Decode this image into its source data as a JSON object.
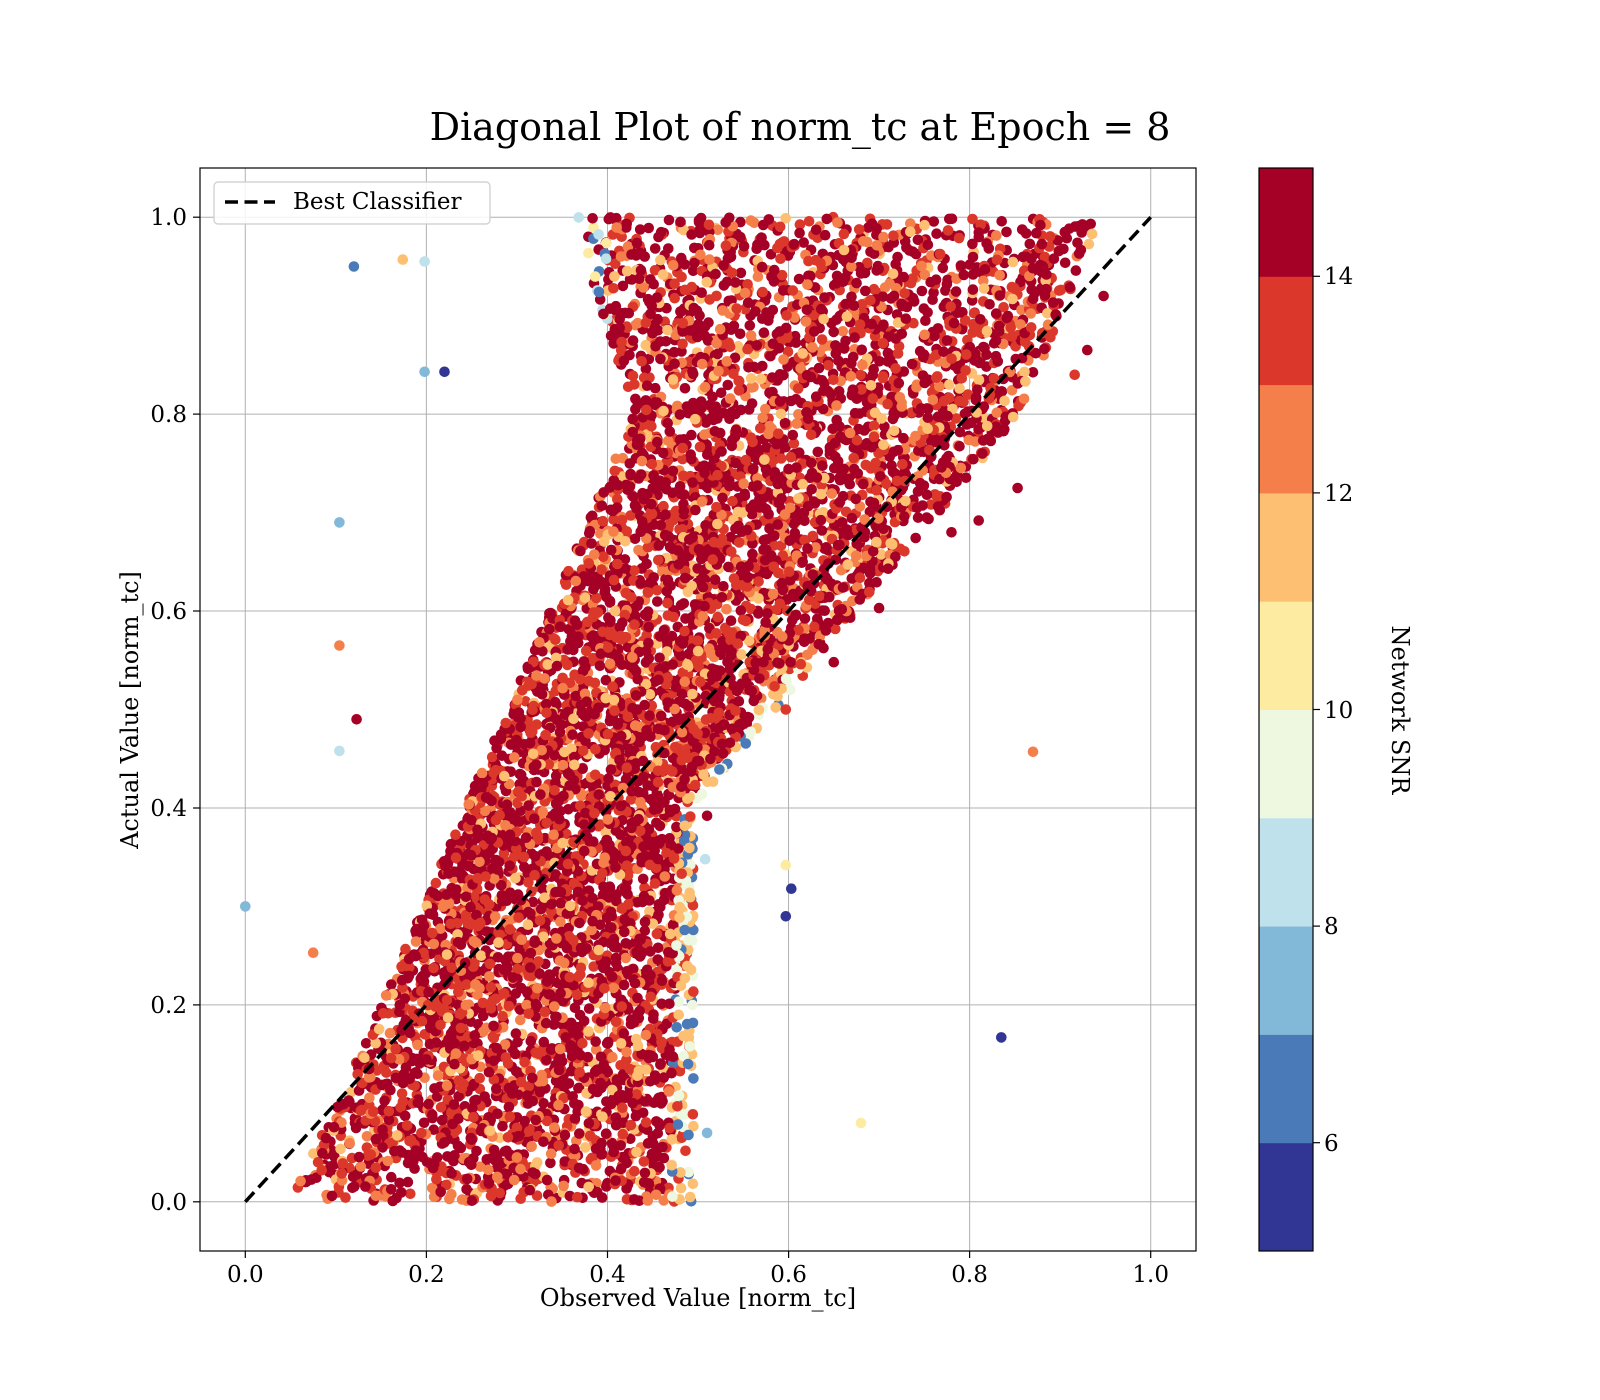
{
  "chart_data": {
    "type": "scatter",
    "title": "Diagonal Plot of norm_tc at Epoch = 8",
    "xlabel": "Observed Value [norm_tc]",
    "ylabel": "Actual Value [norm_tc]",
    "xlim": [
      -0.05,
      1.05
    ],
    "ylim": [
      -0.05,
      1.05
    ],
    "x_ticks": [
      0.0,
      0.2,
      0.4,
      0.6,
      0.8,
      1.0
    ],
    "y_ticks": [
      0.0,
      0.2,
      0.4,
      0.6,
      0.8,
      1.0
    ],
    "x_tick_labels": [
      "0.0",
      "0.2",
      "0.4",
      "0.6",
      "0.8",
      "1.0"
    ],
    "y_tick_labels": [
      "0.0",
      "0.2",
      "0.4",
      "0.6",
      "0.8",
      "1.0"
    ],
    "grid": true,
    "legend": {
      "location": "upper-left",
      "entries": [
        {
          "label": "Best Classifier",
          "style": "dashed",
          "color": "#000000"
        }
      ]
    },
    "reference_line": {
      "name": "Best Classifier",
      "x": [
        0.0,
        1.0
      ],
      "y": [
        0.0,
        1.0
      ],
      "color": "#000000",
      "style": "dashed"
    },
    "colorbar": {
      "label": "Network SNR",
      "range": [
        5,
        15
      ],
      "tick_values": [
        6,
        8,
        10,
        12,
        14
      ],
      "tick_labels": [
        "6",
        "8",
        "10",
        "12",
        "14"
      ],
      "colormap": "RdYlBu_r",
      "levels": [
        "#313695",
        "#4a7ab7",
        "#83b9d8",
        "#bee1ec",
        "#eef7e0",
        "#fdeba2",
        "#fdbf71",
        "#f57f4b",
        "#db382b",
        "#a50026"
      ]
    },
    "notable_points": [
      {
        "x": 0.0,
        "y": 0.3,
        "snr": 7.5
      },
      {
        "x": 0.12,
        "y": 0.95,
        "snr": 6.5
      },
      {
        "x": 0.104,
        "y": 0.69,
        "snr": 7.5
      },
      {
        "x": 0.104,
        "y": 0.565,
        "snr": 12.0
      },
      {
        "x": 0.123,
        "y": 0.49,
        "snr": 14.5
      },
      {
        "x": 0.104,
        "y": 0.458,
        "snr": 8.5
      },
      {
        "x": 0.075,
        "y": 0.253,
        "snr": 12.5
      },
      {
        "x": 0.174,
        "y": 0.957,
        "snr": 11.5
      },
      {
        "x": 0.198,
        "y": 0.955,
        "snr": 8.5
      },
      {
        "x": 0.198,
        "y": 0.843,
        "snr": 7.5
      },
      {
        "x": 0.22,
        "y": 0.843,
        "snr": 5.5
      },
      {
        "x": 0.87,
        "y": 0.457,
        "snr": 12.5
      },
      {
        "x": 0.835,
        "y": 0.167,
        "snr": 5.5
      },
      {
        "x": 0.68,
        "y": 0.08,
        "snr": 10.5
      },
      {
        "x": 0.603,
        "y": 0.318,
        "snr": 5.5
      },
      {
        "x": 0.597,
        "y": 0.29,
        "snr": 5.5
      },
      {
        "x": 0.597,
        "y": 0.342,
        "snr": 10.5
      },
      {
        "x": 0.597,
        "y": 0.5,
        "snr": 13.0
      },
      {
        "x": 0.853,
        "y": 0.725,
        "snr": 14.5
      },
      {
        "x": 0.78,
        "y": 0.68,
        "snr": 14.5
      },
      {
        "x": 0.81,
        "y": 0.692,
        "snr": 14.5
      },
      {
        "x": 0.697,
        "y": 0.67,
        "snr": 11.5
      },
      {
        "x": 0.7,
        "y": 0.603,
        "snr": 14.5
      },
      {
        "x": 0.71,
        "y": 0.643,
        "snr": 14.5
      },
      {
        "x": 0.65,
        "y": 0.548,
        "snr": 14.5
      },
      {
        "x": 0.51,
        "y": 0.392,
        "snr": 14.5
      },
      {
        "x": 0.508,
        "y": 0.348,
        "snr": 8.5
      },
      {
        "x": 0.51,
        "y": 0.07,
        "snr": 7.5
      },
      {
        "x": 0.948,
        "y": 0.92,
        "snr": 14.5
      },
      {
        "x": 0.93,
        "y": 0.865,
        "snr": 14.5
      },
      {
        "x": 0.916,
        "y": 0.84,
        "snr": 13.5
      }
    ],
    "point_cloud": {
      "description": "Dense band of roughly 15000 samples; colour = Network SNR",
      "regions": [
        {
          "y_range": [
            0.0,
            0.2
          ],
          "x_range": [
            0.05,
            0.5
          ]
        },
        {
          "y_range": [
            0.2,
            0.4
          ],
          "x_range": [
            0.15,
            0.5
          ]
        },
        {
          "y_range": [
            0.4,
            0.6
          ],
          "x_range": [
            0.22,
            0.64
          ]
        },
        {
          "y_range": [
            0.6,
            0.8
          ],
          "x_range": [
            0.28,
            0.85
          ]
        },
        {
          "y_range": [
            0.8,
            1.0
          ],
          "x_range": [
            0.36,
            0.95
          ]
        }
      ]
    }
  }
}
